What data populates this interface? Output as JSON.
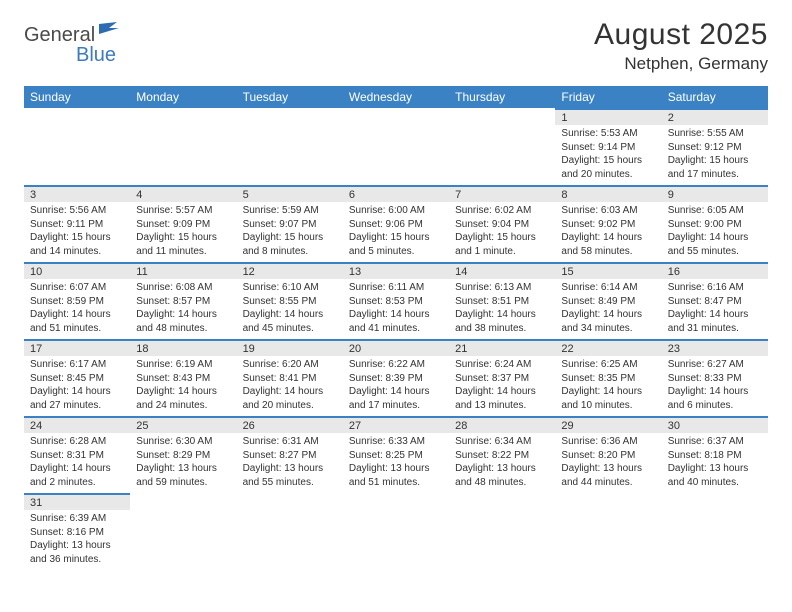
{
  "logo": {
    "text1": "General",
    "text2": "Blue"
  },
  "title": "August 2025",
  "location": "Netphen, Germany",
  "colors": {
    "header_bg": "#3b82c4",
    "header_text": "#ffffff",
    "daynum_bg": "#e8e8e8",
    "border_top": "#3b82c4",
    "text": "#333333",
    "logo_gray": "#4a4a4a",
    "logo_blue": "#3b7bbf"
  },
  "dayNames": [
    "Sunday",
    "Monday",
    "Tuesday",
    "Wednesday",
    "Thursday",
    "Friday",
    "Saturday"
  ],
  "weeks": [
    [
      null,
      null,
      null,
      null,
      null,
      {
        "n": "1",
        "sr": "Sunrise: 5:53 AM",
        "ss": "Sunset: 9:14 PM",
        "dl": "Daylight: 15 hours and 20 minutes."
      },
      {
        "n": "2",
        "sr": "Sunrise: 5:55 AM",
        "ss": "Sunset: 9:12 PM",
        "dl": "Daylight: 15 hours and 17 minutes."
      }
    ],
    [
      {
        "n": "3",
        "sr": "Sunrise: 5:56 AM",
        "ss": "Sunset: 9:11 PM",
        "dl": "Daylight: 15 hours and 14 minutes."
      },
      {
        "n": "4",
        "sr": "Sunrise: 5:57 AM",
        "ss": "Sunset: 9:09 PM",
        "dl": "Daylight: 15 hours and 11 minutes."
      },
      {
        "n": "5",
        "sr": "Sunrise: 5:59 AM",
        "ss": "Sunset: 9:07 PM",
        "dl": "Daylight: 15 hours and 8 minutes."
      },
      {
        "n": "6",
        "sr": "Sunrise: 6:00 AM",
        "ss": "Sunset: 9:06 PM",
        "dl": "Daylight: 15 hours and 5 minutes."
      },
      {
        "n": "7",
        "sr": "Sunrise: 6:02 AM",
        "ss": "Sunset: 9:04 PM",
        "dl": "Daylight: 15 hours and 1 minute."
      },
      {
        "n": "8",
        "sr": "Sunrise: 6:03 AM",
        "ss": "Sunset: 9:02 PM",
        "dl": "Daylight: 14 hours and 58 minutes."
      },
      {
        "n": "9",
        "sr": "Sunrise: 6:05 AM",
        "ss": "Sunset: 9:00 PM",
        "dl": "Daylight: 14 hours and 55 minutes."
      }
    ],
    [
      {
        "n": "10",
        "sr": "Sunrise: 6:07 AM",
        "ss": "Sunset: 8:59 PM",
        "dl": "Daylight: 14 hours and 51 minutes."
      },
      {
        "n": "11",
        "sr": "Sunrise: 6:08 AM",
        "ss": "Sunset: 8:57 PM",
        "dl": "Daylight: 14 hours and 48 minutes."
      },
      {
        "n": "12",
        "sr": "Sunrise: 6:10 AM",
        "ss": "Sunset: 8:55 PM",
        "dl": "Daylight: 14 hours and 45 minutes."
      },
      {
        "n": "13",
        "sr": "Sunrise: 6:11 AM",
        "ss": "Sunset: 8:53 PM",
        "dl": "Daylight: 14 hours and 41 minutes."
      },
      {
        "n": "14",
        "sr": "Sunrise: 6:13 AM",
        "ss": "Sunset: 8:51 PM",
        "dl": "Daylight: 14 hours and 38 minutes."
      },
      {
        "n": "15",
        "sr": "Sunrise: 6:14 AM",
        "ss": "Sunset: 8:49 PM",
        "dl": "Daylight: 14 hours and 34 minutes."
      },
      {
        "n": "16",
        "sr": "Sunrise: 6:16 AM",
        "ss": "Sunset: 8:47 PM",
        "dl": "Daylight: 14 hours and 31 minutes."
      }
    ],
    [
      {
        "n": "17",
        "sr": "Sunrise: 6:17 AM",
        "ss": "Sunset: 8:45 PM",
        "dl": "Daylight: 14 hours and 27 minutes."
      },
      {
        "n": "18",
        "sr": "Sunrise: 6:19 AM",
        "ss": "Sunset: 8:43 PM",
        "dl": "Daylight: 14 hours and 24 minutes."
      },
      {
        "n": "19",
        "sr": "Sunrise: 6:20 AM",
        "ss": "Sunset: 8:41 PM",
        "dl": "Daylight: 14 hours and 20 minutes."
      },
      {
        "n": "20",
        "sr": "Sunrise: 6:22 AM",
        "ss": "Sunset: 8:39 PM",
        "dl": "Daylight: 14 hours and 17 minutes."
      },
      {
        "n": "21",
        "sr": "Sunrise: 6:24 AM",
        "ss": "Sunset: 8:37 PM",
        "dl": "Daylight: 14 hours and 13 minutes."
      },
      {
        "n": "22",
        "sr": "Sunrise: 6:25 AM",
        "ss": "Sunset: 8:35 PM",
        "dl": "Daylight: 14 hours and 10 minutes."
      },
      {
        "n": "23",
        "sr": "Sunrise: 6:27 AM",
        "ss": "Sunset: 8:33 PM",
        "dl": "Daylight: 14 hours and 6 minutes."
      }
    ],
    [
      {
        "n": "24",
        "sr": "Sunrise: 6:28 AM",
        "ss": "Sunset: 8:31 PM",
        "dl": "Daylight: 14 hours and 2 minutes."
      },
      {
        "n": "25",
        "sr": "Sunrise: 6:30 AM",
        "ss": "Sunset: 8:29 PM",
        "dl": "Daylight: 13 hours and 59 minutes."
      },
      {
        "n": "26",
        "sr": "Sunrise: 6:31 AM",
        "ss": "Sunset: 8:27 PM",
        "dl": "Daylight: 13 hours and 55 minutes."
      },
      {
        "n": "27",
        "sr": "Sunrise: 6:33 AM",
        "ss": "Sunset: 8:25 PM",
        "dl": "Daylight: 13 hours and 51 minutes."
      },
      {
        "n": "28",
        "sr": "Sunrise: 6:34 AM",
        "ss": "Sunset: 8:22 PM",
        "dl": "Daylight: 13 hours and 48 minutes."
      },
      {
        "n": "29",
        "sr": "Sunrise: 6:36 AM",
        "ss": "Sunset: 8:20 PM",
        "dl": "Daylight: 13 hours and 44 minutes."
      },
      {
        "n": "30",
        "sr": "Sunrise: 6:37 AM",
        "ss": "Sunset: 8:18 PM",
        "dl": "Daylight: 13 hours and 40 minutes."
      }
    ],
    [
      {
        "n": "31",
        "sr": "Sunrise: 6:39 AM",
        "ss": "Sunset: 8:16 PM",
        "dl": "Daylight: 13 hours and 36 minutes."
      },
      null,
      null,
      null,
      null,
      null,
      null
    ]
  ]
}
